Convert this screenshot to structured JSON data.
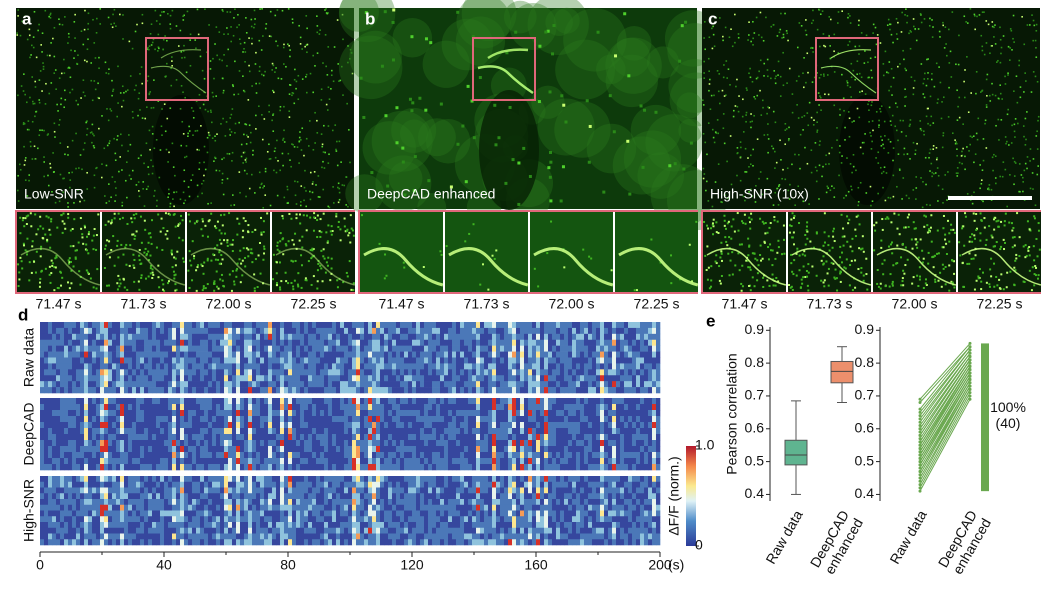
{
  "panels": [
    {
      "letter": "a",
      "caption": "Low-SNR",
      "times": [
        "71.47 s",
        "71.73 s",
        "72.00 s",
        "72.25 s"
      ]
    },
    {
      "letter": "b",
      "caption": "DeepCAD enhanced",
      "times": [
        "71.47 s",
        "71.73 s",
        "72.00 s",
        "72.25 s"
      ]
    },
    {
      "letter": "c",
      "caption": "High-SNR (10x)",
      "times": [
        "71.47 s",
        "71.73 s",
        "72.00 s",
        "72.25 s"
      ]
    }
  ],
  "chart_data": [
    {
      "type": "heatmap",
      "panel": "d",
      "rows": [
        "Raw data",
        "DeepCAD",
        "High-SNR"
      ],
      "xlim": [
        0,
        200
      ],
      "xticks": [
        0,
        40,
        80,
        120,
        160,
        200
      ],
      "xunit": "(s)",
      "colorbar_label": "ΔF/F (norm.)",
      "clim": [
        0,
        1
      ],
      "cticks": [
        0,
        {
          "value": 1,
          "label": "1.0"
        }
      ]
    },
    {
      "type": "box",
      "panel": "e",
      "ylabel": "Pearson correlation",
      "categories": [
        "Raw data",
        "DeepCAD\nenhanced"
      ],
      "series": [
        {
          "name": "Raw data",
          "color": "#5fb490",
          "values": {
            "min": 0.4,
            "q1": 0.49,
            "median": 0.52,
            "q3": 0.565,
            "max": 0.685
          }
        },
        {
          "name": "DeepCAD enhanced",
          "color": "#ec8f6c",
          "values": {
            "min": 0.68,
            "q1": 0.74,
            "median": 0.775,
            "q3": 0.805,
            "max": 0.85
          }
        }
      ],
      "ylim": [
        0.38,
        0.91
      ],
      "yticks": [
        0.4,
        0.5,
        0.6,
        0.7,
        0.8,
        0.9
      ]
    },
    {
      "type": "paired",
      "categories": [
        "Raw data",
        "DeepCAD\nenhanced"
      ],
      "color": "#6aa84f",
      "raw": [
        0.41,
        0.42,
        0.43,
        0.44,
        0.45,
        0.46,
        0.47,
        0.47,
        0.48,
        0.49,
        0.49,
        0.5,
        0.5,
        0.51,
        0.51,
        0.52,
        0.52,
        0.52,
        0.53,
        0.53,
        0.54,
        0.54,
        0.55,
        0.55,
        0.56,
        0.56,
        0.57,
        0.58,
        0.58,
        0.59,
        0.6,
        0.6,
        0.61,
        0.62,
        0.63,
        0.64,
        0.65,
        0.66,
        0.68,
        0.69
      ],
      "enhanced": [
        0.69,
        0.7,
        0.71,
        0.72,
        0.72,
        0.73,
        0.73,
        0.74,
        0.74,
        0.75,
        0.75,
        0.75,
        0.76,
        0.76,
        0.76,
        0.77,
        0.77,
        0.77,
        0.78,
        0.78,
        0.78,
        0.79,
        0.79,
        0.79,
        0.8,
        0.8,
        0.8,
        0.81,
        0.81,
        0.81,
        0.82,
        0.82,
        0.82,
        0.83,
        0.83,
        0.84,
        0.84,
        0.85,
        0.85,
        0.86
      ],
      "annotation": "100%\n(40)",
      "ylim": [
        0.38,
        0.91
      ],
      "yticks": [
        0.4,
        0.5,
        0.6,
        0.7,
        0.8,
        0.9
      ]
    }
  ]
}
